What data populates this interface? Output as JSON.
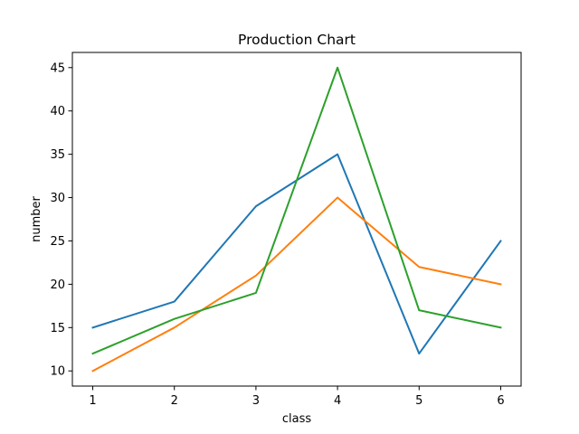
{
  "chart_data": {
    "type": "line",
    "title": "Production Chart",
    "xlabel": "class",
    "ylabel": "number",
    "x": [
      1,
      2,
      3,
      4,
      5,
      6
    ],
    "xlim": [
      0.75,
      6.25
    ],
    "ylim": [
      8.25,
      46.75
    ],
    "xticks": [
      1,
      2,
      3,
      4,
      5,
      6
    ],
    "yticks": [
      10,
      15,
      20,
      25,
      30,
      35,
      40,
      45
    ],
    "grid": false,
    "legend": "none",
    "series": [
      {
        "values": [
          15,
          18,
          29,
          35,
          12,
          25
        ],
        "color": "#1f77b4"
      },
      {
        "values": [
          10,
          15,
          21,
          30,
          22,
          20
        ],
        "color": "#ff7f0e"
      },
      {
        "values": [
          12,
          16,
          19,
          45,
          17,
          15
        ],
        "color": "#2ca02c"
      }
    ]
  }
}
